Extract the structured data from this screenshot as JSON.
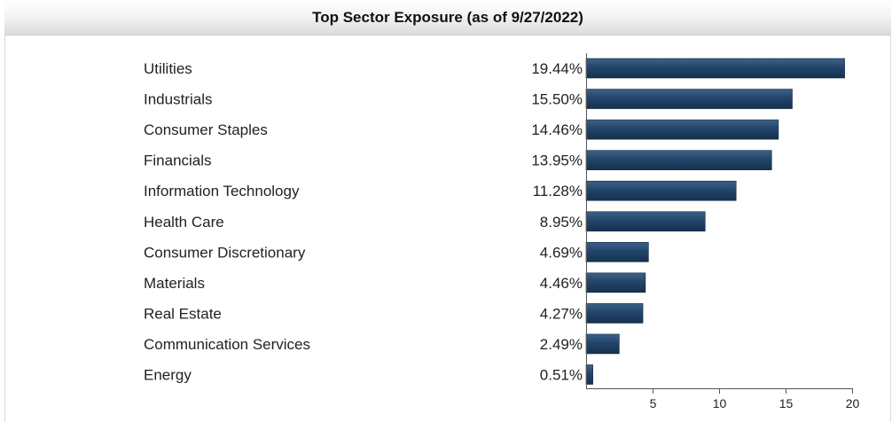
{
  "title": "Top Sector Exposure (as of 9/27/2022)",
  "chart_data": {
    "type": "bar",
    "orientation": "horizontal",
    "title": "Top Sector Exposure (as of 9/27/2022)",
    "categories": [
      "Utilities",
      "Industrials",
      "Consumer Staples",
      "Financials",
      "Information Technology",
      "Health Care",
      "Consumer Discretionary",
      "Materials",
      "Real Estate",
      "Communication Services",
      "Energy"
    ],
    "values": [
      19.44,
      15.5,
      14.46,
      13.95,
      11.28,
      8.95,
      4.69,
      4.46,
      4.27,
      2.49,
      0.51
    ],
    "value_labels": [
      "19.44%",
      "15.50%",
      "14.46%",
      "13.95%",
      "11.28%",
      "8.95%",
      "4.69%",
      "4.46%",
      "4.27%",
      "2.49%",
      "0.51%"
    ],
    "xlim": [
      0,
      20
    ],
    "xticks": [
      5,
      10,
      15,
      20
    ],
    "xlabel": "",
    "ylabel": "",
    "bar_color": "#1f3f63",
    "grid": false,
    "legend": "none"
  }
}
